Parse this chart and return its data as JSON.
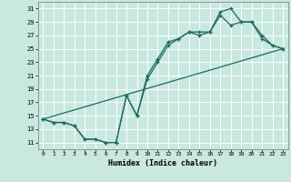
{
  "xlabel": "Humidex (Indice chaleur)",
  "bg_color": "#c8e8e0",
  "grid_color": "#ffffff",
  "line_color": "#1a6b5a",
  "xlim": [
    -0.5,
    23.5
  ],
  "ylim": [
    10.0,
    32.0
  ],
  "xticks": [
    0,
    1,
    2,
    3,
    4,
    5,
    6,
    7,
    8,
    9,
    10,
    11,
    12,
    13,
    14,
    15,
    16,
    17,
    18,
    19,
    20,
    21,
    22,
    23
  ],
  "yticks": [
    11,
    13,
    15,
    17,
    19,
    21,
    23,
    25,
    27,
    29,
    31
  ],
  "line1_x": [
    0,
    1,
    2,
    3,
    4,
    5,
    6,
    7,
    8,
    9,
    10,
    11,
    12,
    13,
    14,
    15,
    16,
    17,
    18,
    19,
    20,
    21,
    22,
    23
  ],
  "line1_y": [
    14.5,
    14.0,
    14.0,
    13.5,
    11.5,
    11.5,
    11.0,
    11.0,
    18.0,
    15.0,
    21.0,
    23.5,
    26.0,
    26.5,
    27.5,
    27.5,
    27.5,
    30.5,
    31.0,
    29.0,
    29.0,
    27.0,
    25.5,
    25.0
  ],
  "line2_x": [
    0,
    1,
    2,
    3,
    4,
    5,
    6,
    7,
    8,
    9,
    10,
    11,
    12,
    13,
    14,
    15,
    16,
    17,
    18,
    19,
    20,
    21,
    22,
    23
  ],
  "line2_y": [
    14.5,
    14.0,
    14.0,
    13.5,
    11.5,
    11.5,
    11.0,
    11.0,
    18.0,
    15.0,
    20.5,
    23.0,
    25.5,
    26.5,
    27.5,
    27.0,
    27.5,
    30.0,
    28.5,
    29.0,
    29.0,
    26.5,
    25.5,
    25.0
  ],
  "line3_x": [
    0,
    23
  ],
  "line3_y": [
    14.5,
    25.0
  ]
}
